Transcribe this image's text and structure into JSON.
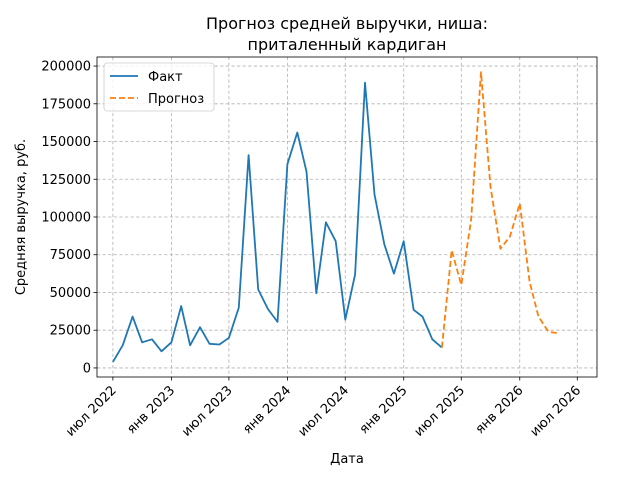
{
  "chart_data": {
    "type": "line",
    "title_lines": [
      "Прогноз средней выручки, ниша:",
      "приталенный кардиган"
    ],
    "xlabel": "Дата",
    "ylabel": "Средняя выручка, руб.",
    "ylim": [
      -6000,
      206000
    ],
    "xlim": [
      "2022-05-12",
      "2026-09-01"
    ],
    "y_ticks": [
      0,
      25000,
      50000,
      75000,
      100000,
      125000,
      150000,
      175000,
      200000
    ],
    "y_tick_labels": [
      "0",
      "25000",
      "50000",
      "75000",
      "100000",
      "125000",
      "150000",
      "175000",
      "200000"
    ],
    "x_ticks": [
      "2022-07-01",
      "2023-01-01",
      "2023-07-01",
      "2024-01-01",
      "2024-07-01",
      "2025-01-01",
      "2025-07-01",
      "2026-01-01",
      "2026-07-01"
    ],
    "x_tick_labels": [
      "июл 2022",
      "янв 2023",
      "июл 2023",
      "янв 2024",
      "июл 2024",
      "янв 2025",
      "июл 2025",
      "янв 2026",
      "июл 2026"
    ],
    "grid": true,
    "legend_position": "top-left",
    "series": [
      {
        "name": "Факт",
        "color": "#1f77b4",
        "style": "solid",
        "points": [
          [
            "2022-07-01",
            4000
          ],
          [
            "2022-08-01",
            15000
          ],
          [
            "2022-09-01",
            34000
          ],
          [
            "2022-10-01",
            17000
          ],
          [
            "2022-11-01",
            19000
          ],
          [
            "2022-12-01",
            11000
          ],
          [
            "2023-01-01",
            17000
          ],
          [
            "2023-02-01",
            41000
          ],
          [
            "2023-03-01",
            15000
          ],
          [
            "2023-04-01",
            27000
          ],
          [
            "2023-05-01",
            16000
          ],
          [
            "2023-06-01",
            15500
          ],
          [
            "2023-07-01",
            20000
          ],
          [
            "2023-08-01",
            40000
          ],
          [
            "2023-09-01",
            141000
          ],
          [
            "2023-10-01",
            52000
          ],
          [
            "2023-11-01",
            39000
          ],
          [
            "2023-12-01",
            30500
          ],
          [
            "2024-01-01",
            135000
          ],
          [
            "2024-02-01",
            156000
          ],
          [
            "2024-03-01",
            130000
          ],
          [
            "2024-04-01",
            49500
          ],
          [
            "2024-05-01",
            96500
          ],
          [
            "2024-06-01",
            84000
          ],
          [
            "2024-07-01",
            32000
          ],
          [
            "2024-08-01",
            62000
          ],
          [
            "2024-09-01",
            189000
          ],
          [
            "2024-10-01",
            115000
          ],
          [
            "2024-11-01",
            82000
          ],
          [
            "2024-12-01",
            62500
          ],
          [
            "2025-01-01",
            84000
          ],
          [
            "2025-02-01",
            38500
          ],
          [
            "2025-03-01",
            34000
          ],
          [
            "2025-04-01",
            19000
          ],
          [
            "2025-05-01",
            13500
          ]
        ]
      },
      {
        "name": "Прогноз",
        "color": "#ff7f0e",
        "style": "dashed",
        "points": [
          [
            "2025-05-01",
            13500
          ],
          [
            "2025-06-01",
            78000
          ],
          [
            "2025-07-01",
            55000
          ],
          [
            "2025-08-01",
            98000
          ],
          [
            "2025-09-01",
            196000
          ],
          [
            "2025-10-01",
            120000
          ],
          [
            "2025-11-01",
            79000
          ],
          [
            "2025-12-01",
            87000
          ],
          [
            "2026-01-01",
            109000
          ],
          [
            "2026-02-01",
            57000
          ],
          [
            "2026-03-01",
            34000
          ],
          [
            "2026-04-01",
            24000
          ],
          [
            "2026-05-01",
            23000
          ]
        ]
      }
    ]
  }
}
